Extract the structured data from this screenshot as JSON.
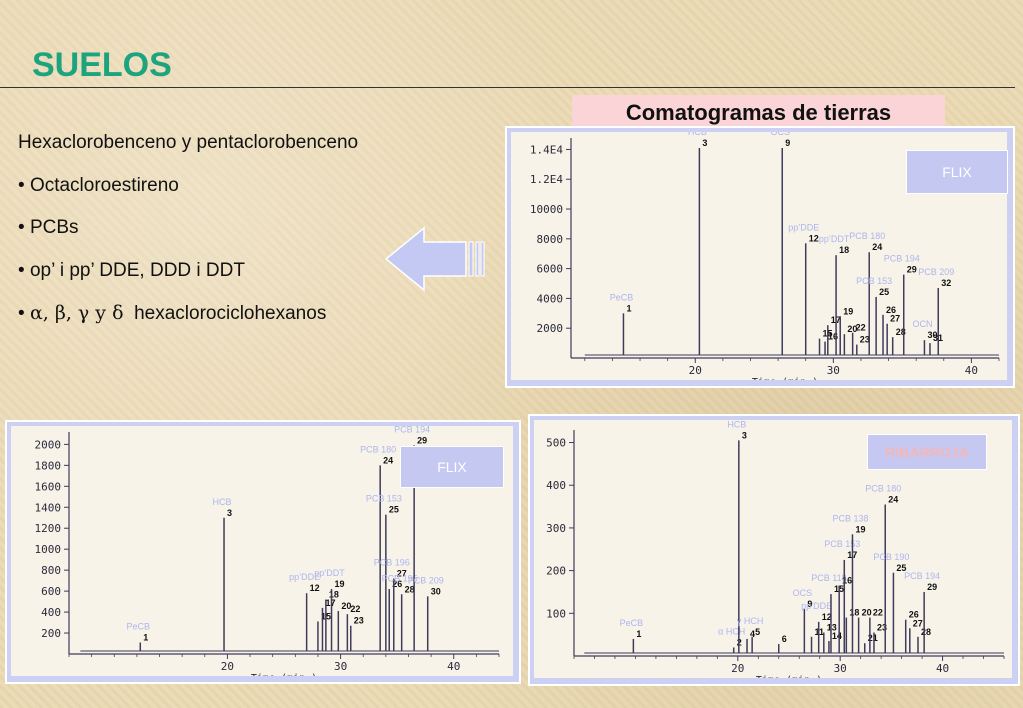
{
  "slide": {
    "title": "SUELOS",
    "bullets": [
      {
        "text": "Hexaclorobenceno y pentaclorobenceno"
      },
      {
        "prefix": "• ",
        "text": "Octacloroestireno"
      },
      {
        "prefix": "• ",
        "text": "PCBs"
      },
      {
        "prefix": "• ",
        "text": "op’ i pp’ DDE, DDD i DDT"
      },
      {
        "prefix": "• ",
        "greek": "α, β, γ y  δ",
        "text": "hexaclorociclohexanos"
      }
    ],
    "comato_title": "Comatogramas de tierras"
  },
  "colors": {
    "title": "#1ca47e",
    "panel": "#ccd1f4",
    "label": "#aeb6ee",
    "trace": "#3f3b5a",
    "tag_bg": "#c5c9f2",
    "ribarroja_text": "#f3b7b9"
  },
  "chart_data": [
    {
      "id": "top-right",
      "type": "line",
      "tag": "FLIX",
      "xlabel": "Time (min.)",
      "xticks": [
        20,
        30,
        40
      ],
      "yticks": [
        "2000",
        "4000",
        "6000",
        "8000",
        "10000",
        "1.2E4",
        "1.4E4"
      ],
      "xlim": [
        11,
        42
      ],
      "ylim": [
        0,
        14500
      ],
      "peaks": [
        {
          "x": 14.8,
          "h": 3000,
          "num": "1",
          "label": "PeCB"
        },
        {
          "x": 20.3,
          "h": 14100,
          "num": "3",
          "label": "HCB"
        },
        {
          "x": 26.3,
          "h": 14100,
          "num": "9",
          "label": "OCS"
        },
        {
          "x": 28.0,
          "h": 7700,
          "num": "12",
          "label": "pp’DDE"
        },
        {
          "x": 29.0,
          "h": 1300,
          "num": "15"
        },
        {
          "x": 29.4,
          "h": 1100,
          "num": "16"
        },
        {
          "x": 29.6,
          "h": 2200,
          "num": "17"
        },
        {
          "x": 30.2,
          "h": 6900,
          "num": "18",
          "label": "pp’DDT"
        },
        {
          "x": 30.5,
          "h": 2800,
          "num": "19"
        },
        {
          "x": 30.8,
          "h": 1600,
          "num": "20"
        },
        {
          "x": 31.4,
          "h": 1700,
          "num": "22"
        },
        {
          "x": 31.7,
          "h": 900,
          "num": "23"
        },
        {
          "x": 32.6,
          "h": 7100,
          "num": "24",
          "label": "PCB 180"
        },
        {
          "x": 33.1,
          "h": 4100,
          "num": "25",
          "label": "PCB 153"
        },
        {
          "x": 33.6,
          "h": 2900,
          "num": "26"
        },
        {
          "x": 33.9,
          "h": 2300,
          "num": "27"
        },
        {
          "x": 34.3,
          "h": 1400,
          "num": "28"
        },
        {
          "x": 35.1,
          "h": 5600,
          "num": "29",
          "label": "PCB 194"
        },
        {
          "x": 36.6,
          "h": 1200,
          "num": "30",
          "label": "OCN"
        },
        {
          "x": 37.0,
          "h": 1000,
          "num": "31"
        },
        {
          "x": 37.6,
          "h": 4700,
          "num": "32",
          "label": "PCB 209"
        }
      ]
    },
    {
      "id": "bottom-left",
      "type": "line",
      "tag": "FLIX",
      "xlabel": "Time (min.)",
      "xticks": [
        20,
        30,
        40
      ],
      "yticks": [
        "200",
        "400",
        "600",
        "800",
        "1000",
        "1200",
        "1400",
        "1600",
        "1800",
        "2000"
      ],
      "xlim": [
        6,
        44
      ],
      "ylim": [
        0,
        2080
      ],
      "peaks": [
        {
          "x": 12.3,
          "h": 110,
          "num": "1",
          "label": "PeCB"
        },
        {
          "x": 19.7,
          "h": 1300,
          "num": "3",
          "label": "HCB"
        },
        {
          "x": 27.0,
          "h": 580,
          "num": "12",
          "label": "pp’DDE"
        },
        {
          "x": 28.0,
          "h": 310,
          "num": "15"
        },
        {
          "x": 28.4,
          "h": 440,
          "num": "17"
        },
        {
          "x": 28.7,
          "h": 520,
          "num": "18"
        },
        {
          "x": 29.2,
          "h": 620,
          "num": "19",
          "label": "pp’DDT"
        },
        {
          "x": 29.8,
          "h": 410,
          "num": "20"
        },
        {
          "x": 30.6,
          "h": 380,
          "num": "22"
        },
        {
          "x": 30.9,
          "h": 270,
          "num": "23"
        },
        {
          "x": 33.5,
          "h": 1800,
          "num": "24",
          "label": "PCB 180"
        },
        {
          "x": 34.0,
          "h": 1330,
          "num": "25",
          "label": "PCB 153"
        },
        {
          "x": 34.3,
          "h": 620,
          "num": "26"
        },
        {
          "x": 34.7,
          "h": 720,
          "num": "27",
          "label": "PCB 196"
        },
        {
          "x": 35.4,
          "h": 570,
          "num": "28",
          "label": "PCB 195"
        },
        {
          "x": 36.5,
          "h": 1990,
          "num": "29",
          "label": "PCB 194"
        },
        {
          "x": 37.7,
          "h": 550,
          "num": "30",
          "label": "PCB 209"
        }
      ]
    },
    {
      "id": "bottom-right",
      "type": "line",
      "tag": "RIBARROJA",
      "xlabel": "Time (min.)",
      "xticks": [
        20,
        30,
        40
      ],
      "yticks": [
        "100",
        "200",
        "300",
        "400",
        "500"
      ],
      "xlim": [
        4,
        46
      ],
      "ylim": [
        0,
        520
      ],
      "peaks": [
        {
          "x": 9.8,
          "h": 40,
          "num": "1",
          "label": "PeCB"
        },
        {
          "x": 19.6,
          "h": 20,
          "num": "2",
          "label": "α HCH"
        },
        {
          "x": 20.1,
          "h": 505,
          "num": "3",
          "label": "HCB"
        },
        {
          "x": 20.9,
          "h": 40,
          "num": "4"
        },
        {
          "x": 21.4,
          "h": 45,
          "num": "5",
          "label": "γ HCH"
        },
        {
          "x": 24.0,
          "h": 28,
          "num": "6"
        },
        {
          "x": 26.5,
          "h": 110,
          "num": "9",
          "label": "OCS"
        },
        {
          "x": 27.2,
          "h": 45,
          "num": "11"
        },
        {
          "x": 27.9,
          "h": 80,
          "num": "12",
          "label": "pp’DDE"
        },
        {
          "x": 28.4,
          "h": 55,
          "num": "13"
        },
        {
          "x": 28.9,
          "h": 35,
          "num": "14"
        },
        {
          "x": 29.1,
          "h": 145,
          "num": "15",
          "label": "PCB 118"
        },
        {
          "x": 29.9,
          "h": 165,
          "num": "16"
        },
        {
          "x": 30.4,
          "h": 225,
          "num": "17",
          "label": "PCB 153"
        },
        {
          "x": 30.6,
          "h": 90,
          "num": "18"
        },
        {
          "x": 31.2,
          "h": 285,
          "num": "19",
          "label": "PCB 138"
        },
        {
          "x": 31.8,
          "h": 90,
          "num": "20"
        },
        {
          "x": 32.4,
          "h": 30,
          "num": "21"
        },
        {
          "x": 32.9,
          "h": 90,
          "num": "22"
        },
        {
          "x": 33.3,
          "h": 55,
          "num": "23"
        },
        {
          "x": 34.4,
          "h": 355,
          "num": "24",
          "label": "PCB 180"
        },
        {
          "x": 35.2,
          "h": 195,
          "num": "25",
          "label": "PCB 190"
        },
        {
          "x": 36.4,
          "h": 85,
          "num": "26"
        },
        {
          "x": 36.8,
          "h": 65,
          "num": "27"
        },
        {
          "x": 37.6,
          "h": 45,
          "num": "28"
        },
        {
          "x": 38.2,
          "h": 150,
          "num": "29",
          "label": "PCB 194"
        }
      ]
    }
  ]
}
